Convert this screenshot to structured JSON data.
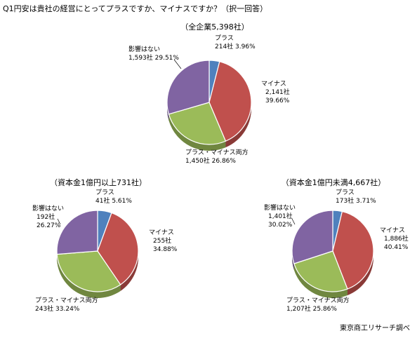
{
  "question_title": "Q1円安は貴社の経営にとってプラスですか、マイナスですか？（択一回答）",
  "credit": "東京商工リサーチ調べ",
  "colors": {
    "plus": "#4f81bd",
    "minus": "#c0504d",
    "both": "#9bbb59",
    "none": "#8064a2"
  },
  "chart_data": [
    {
      "type": "pie",
      "title": "（全企業5,398社）",
      "slices": [
        {
          "label": "プラス",
          "count": "214社",
          "percent": "3.96%",
          "value": 3.96,
          "color": "plus"
        },
        {
          "label": "マイナス",
          "count": "2,141社",
          "percent": "39.66%",
          "value": 39.66,
          "color": "minus"
        },
        {
          "label": "プラス・マイナス両方",
          "count": "1,450社",
          "percent": "26.86%",
          "value": 26.86,
          "color": "both"
        },
        {
          "label": "影響はない",
          "count": "1,593社",
          "percent": "29.51%",
          "value": 29.51,
          "color": "none"
        }
      ]
    },
    {
      "type": "pie",
      "title": "（資本金1億円以上731社）",
      "slices": [
        {
          "label": "プラス",
          "count": "41社",
          "percent": "5.61%",
          "value": 5.61,
          "color": "plus"
        },
        {
          "label": "マイナス",
          "count": "255社",
          "percent": "34.88%",
          "value": 34.88,
          "color": "minus"
        },
        {
          "label": "プラス・マイナス両方",
          "count": "243社",
          "percent": "33.24%",
          "value": 33.24,
          "color": "both"
        },
        {
          "label": "影響はない",
          "count": "192社",
          "percent": "26.27%",
          "value": 26.27,
          "color": "none"
        }
      ]
    },
    {
      "type": "pie",
      "title": "（資本金1億円未満4,667社）",
      "slices": [
        {
          "label": "プラス",
          "count": "173社",
          "percent": "3.71%",
          "value": 3.71,
          "color": "plus"
        },
        {
          "label": "マイナス",
          "count": "1,886社",
          "percent": "40.41%",
          "value": 40.41,
          "color": "minus"
        },
        {
          "label": "プラス・マイナス両方",
          "count": "1,207社",
          "percent": "25.86%",
          "value": 25.86,
          "color": "both"
        },
        {
          "label": "影響はない",
          "count": "1,401社",
          "percent": "30.02%",
          "value": 30.02,
          "color": "none"
        }
      ]
    }
  ]
}
